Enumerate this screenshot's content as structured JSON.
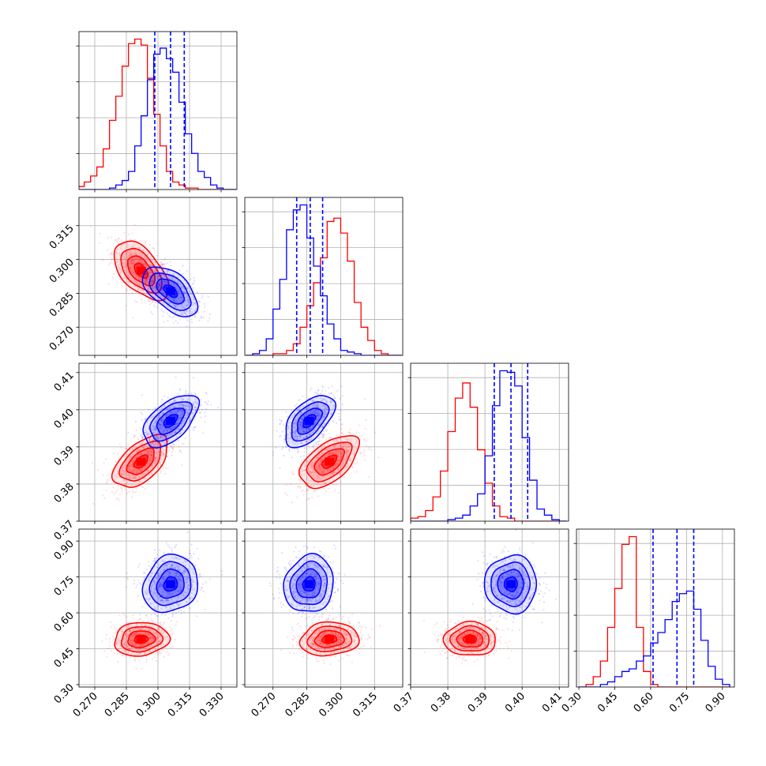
{
  "chart_data": {
    "type": "corner",
    "title": "",
    "parameters": [
      "",
      "",
      "",
      ""
    ],
    "series": [
      {
        "color": "#ff0000",
        "means": [
          0.292,
          0.295,
          0.386,
          0.49
        ],
        "sigmas": [
          0.0065,
          0.0065,
          0.0035,
          0.035
        ],
        "correlations": {
          "1-0": -0.55,
          "2-0": 0.55,
          "2-1": 0.55,
          "3-0": 0.1,
          "3-1": 0.1,
          "3-2": 0.0
        }
      },
      {
        "color": "#0000ff",
        "means": [
          0.306,
          0.286,
          0.397,
          0.72
        ],
        "sigmas": [
          0.0065,
          0.0055,
          0.0035,
          0.06
        ],
        "correlations": {
          "1-0": -0.55,
          "2-0": 0.55,
          "2-1": 0.55,
          "3-0": 0.15,
          "3-1": 0.1,
          "3-2": 0.0
        },
        "quantiles": [
          [
            0.2985,
            0.306,
            0.3125
          ],
          [
            0.2805,
            0.2865,
            0.292
          ],
          [
            0.3925,
            0.397,
            0.4015
          ],
          [
            0.61,
            0.71,
            0.78
          ]
        ]
      }
    ],
    "diagonal_histograms": [
      {
        "xlim": [
          0.2625,
          0.3375
        ],
        "bins": [
          0.262,
          0.265,
          0.268,
          0.271,
          0.274,
          0.277,
          0.28,
          0.283,
          0.286,
          0.289,
          0.292,
          0.295,
          0.298,
          0.301,
          0.304,
          0.307,
          0.31,
          0.313,
          0.316,
          0.319,
          0.322,
          0.325,
          0.328,
          0.331,
          0.334,
          0.337
        ],
        "red": [
          2,
          5,
          9,
          15,
          27,
          46,
          62,
          82,
          97,
          100,
          96,
          74,
          50,
          29,
          12,
          5,
          3,
          1,
          1,
          0,
          0,
          0,
          0,
          0,
          0
        ],
        "blue": [
          0,
          0,
          0,
          0,
          0,
          1,
          3,
          6,
          12,
          29,
          49,
          73,
          90,
          94,
          87,
          78,
          58,
          37,
          24,
          12,
          8,
          3,
          1,
          0,
          0
        ],
        "ticks": []
      },
      {
        "xlim": [
          0.2575,
          0.3275
        ],
        "bins": [
          0.258,
          0.261,
          0.264,
          0.267,
          0.27,
          0.273,
          0.276,
          0.279,
          0.282,
          0.285,
          0.288,
          0.291,
          0.294,
          0.297,
          0.3,
          0.303,
          0.306,
          0.309,
          0.312,
          0.315,
          0.318,
          0.321,
          0.324,
          0.327
        ],
        "red": [
          0,
          0,
          0,
          0,
          1,
          1,
          3,
          7,
          17,
          30,
          44,
          59,
          81,
          83,
          74,
          57,
          32,
          17,
          9,
          3,
          1,
          0,
          0
        ],
        "blue": [
          0,
          1,
          3,
          10,
          28,
          46,
          76,
          88,
          91,
          71,
          54,
          36,
          19,
          10,
          3,
          2,
          1,
          0,
          0,
          0,
          0,
          0,
          0
        ],
        "ticks": []
      },
      {
        "xlim": [
          0.37,
          0.4125
        ],
        "bins": [
          0.37,
          0.372,
          0.374,
          0.376,
          0.378,
          0.38,
          0.382,
          0.384,
          0.386,
          0.388,
          0.39,
          0.392,
          0.394,
          0.396,
          0.398,
          0.4,
          0.402,
          0.404,
          0.406,
          0.408,
          0.41,
          0.412
        ],
        "red": [
          2,
          3,
          7,
          16,
          33,
          59,
          81,
          91,
          75,
          47,
          25,
          10,
          3,
          2,
          0,
          0,
          0,
          0,
          0,
          0,
          0
        ],
        "blue": [
          0,
          0,
          0,
          0,
          0,
          1,
          2,
          4,
          10,
          18,
          43,
          76,
          99,
          98,
          89,
          55,
          27,
          8,
          4,
          1,
          0
        ],
        "ticks": []
      },
      {
        "xlim": [
          0.29,
          0.95
        ],
        "bins": [
          0.3,
          0.33,
          0.36,
          0.39,
          0.42,
          0.45,
          0.48,
          0.51,
          0.54,
          0.57,
          0.6,
          0.63,
          0.66,
          0.69,
          0.72,
          0.75,
          0.78,
          0.81,
          0.84,
          0.87,
          0.9,
          0.93
        ],
        "red": [
          0,
          1,
          4,
          10,
          23,
          38,
          55,
          58,
          23,
          6,
          1,
          0,
          0,
          0,
          0,
          0,
          0,
          0,
          0,
          0,
          0
        ],
        "blue": [
          0,
          0,
          0,
          1,
          2,
          4,
          6,
          7,
          10,
          12,
          17,
          21,
          26,
          33,
          36,
          37,
          30,
          18,
          8,
          3,
          1
        ],
        "ticks": [
          "0.30",
          "0.45",
          "0.60",
          "0.75",
          "0.90"
        ]
      }
    ],
    "pair_panels": [
      {
        "row": 1,
        "col": 0,
        "xlim": [
          0.2625,
          0.3375
        ],
        "ylim": [
          0.2575,
          0.3275
        ]
      },
      {
        "row": 2,
        "col": 0,
        "xlim": [
          0.2625,
          0.3375
        ],
        "ylim": [
          0.37,
          0.4125
        ]
      },
      {
        "row": 2,
        "col": 1,
        "xlim": [
          0.2575,
          0.3275
        ],
        "ylim": [
          0.37,
          0.4125
        ]
      },
      {
        "row": 3,
        "col": 0,
        "xlim": [
          0.2625,
          0.3375
        ],
        "ylim": [
          0.29,
          0.95
        ]
      },
      {
        "row": 3,
        "col": 1,
        "xlim": [
          0.2575,
          0.3275
        ],
        "ylim": [
          0.29,
          0.95
        ]
      },
      {
        "row": 3,
        "col": 2,
        "xlim": [
          0.37,
          0.4125
        ],
        "ylim": [
          0.29,
          0.95
        ]
      }
    ],
    "axis_ticks": [
      {
        "id": "x0",
        "labels": [
          "0.270",
          "0.285",
          "0.300",
          "0.315",
          "0.330"
        ],
        "values": [
          0.27,
          0.285,
          0.3,
          0.315,
          0.33
        ]
      },
      {
        "id": "x1",
        "labels": [
          "0.270",
          "0.285",
          "0.300",
          "0.315"
        ],
        "values": [
          0.27,
          0.285,
          0.3,
          0.315
        ]
      },
      {
        "id": "x2",
        "labels": [
          "0.37",
          "0.38",
          "0.39",
          "0.40",
          "0.41"
        ],
        "values": [
          0.37,
          0.38,
          0.39,
          0.4,
          0.41
        ]
      },
      {
        "id": "x3",
        "labels": [
          "0.30",
          "0.45",
          "0.60",
          "0.75",
          "0.90"
        ],
        "values": [
          0.3,
          0.45,
          0.6,
          0.75,
          0.9
        ]
      },
      {
        "id": "y1",
        "labels": [
          "0.270",
          "0.285",
          "0.300",
          "0.315"
        ],
        "values": [
          0.27,
          0.285,
          0.3,
          0.315
        ]
      },
      {
        "id": "y2",
        "labels": [
          "0.37",
          "0.38",
          "0.39",
          "0.40",
          "0.41"
        ],
        "values": [
          0.37,
          0.38,
          0.39,
          0.4,
          0.41
        ]
      },
      {
        "id": "y3",
        "labels": [
          "0.30",
          "0.45",
          "0.60",
          "0.75",
          "0.90"
        ],
        "values": [
          0.3,
          0.45,
          0.6,
          0.75,
          0.9
        ]
      }
    ],
    "grid": true,
    "legend": "none"
  }
}
